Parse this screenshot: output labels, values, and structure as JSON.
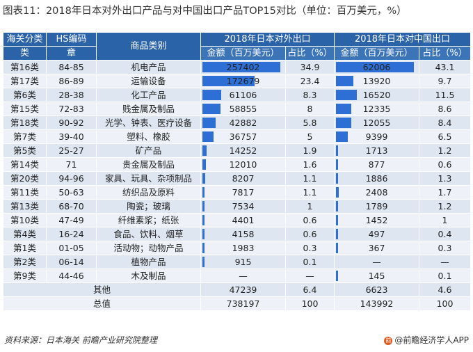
{
  "title": "图表11：2018年日本对外出口产品与对中国出口产品TOP15对比（单位：百万美元，%）",
  "headers": {
    "customs_class": "海关分类",
    "customs_class_sub": "类",
    "hs_code": "HS编码",
    "hs_code_sub": "章",
    "product_category": "商品类别",
    "group_world": "2018年日本对外出口",
    "group_china": "2018年日本对中国出口",
    "amount": "金额（百万美元）",
    "share": "占比（%）"
  },
  "rows": [
    {
      "cls": "第16类",
      "hs": "84-85",
      "product": "机电产品",
      "world_amount": "257402",
      "world_share": "34.9",
      "china_amount": "62006",
      "china_share": "43.1"
    },
    {
      "cls": "第17类",
      "hs": "86-89",
      "product": "运输设备",
      "world_amount": "172679",
      "world_share": "23.4",
      "china_amount": "13920",
      "china_share": "9.7"
    },
    {
      "cls": "第6类",
      "hs": "28-38",
      "product": "化工产品",
      "world_amount": "61106",
      "world_share": "8.3",
      "china_amount": "16520",
      "china_share": "11.5"
    },
    {
      "cls": "第15类",
      "hs": "72-83",
      "product": "贱金属及制品",
      "world_amount": "58855",
      "world_share": "8",
      "china_amount": "12335",
      "china_share": "8.6"
    },
    {
      "cls": "第18类",
      "hs": "90-92",
      "product": "光学、钟表、医疗设备",
      "world_amount": "42882",
      "world_share": "5.8",
      "china_amount": "12055",
      "china_share": "8.4"
    },
    {
      "cls": "第7类",
      "hs": "39-40",
      "product": "塑料、橡胶",
      "world_amount": "36757",
      "world_share": "5",
      "china_amount": "9399",
      "china_share": "6.5"
    },
    {
      "cls": "第5类",
      "hs": "25-27",
      "product": "矿产品",
      "world_amount": "14252",
      "world_share": "1.9",
      "china_amount": "1713",
      "china_share": "1.2"
    },
    {
      "cls": "第14类",
      "hs": "71",
      "product": "贵金属及制品",
      "world_amount": "12010",
      "world_share": "1.6",
      "china_amount": "877",
      "china_share": "0.6"
    },
    {
      "cls": "第20类",
      "hs": "94-96",
      "product": "家具、玩具、杂项制品",
      "world_amount": "8207",
      "world_share": "1.1",
      "china_amount": "1886",
      "china_share": "1.3"
    },
    {
      "cls": "第11类",
      "hs": "50-63",
      "product": "纺织品及原料",
      "world_amount": "7817",
      "world_share": "1.1",
      "china_amount": "2408",
      "china_share": "1.7"
    },
    {
      "cls": "第13类",
      "hs": "68-70",
      "product": "陶瓷；玻璃",
      "world_amount": "7534",
      "world_share": "1",
      "china_amount": "1789",
      "china_share": "1.2"
    },
    {
      "cls": "第10类",
      "hs": "47-49",
      "product": "纤维素浆；纸张",
      "world_amount": "4401",
      "world_share": "0.6",
      "china_amount": "1452",
      "china_share": "1"
    },
    {
      "cls": "第4类",
      "hs": "16-24",
      "product": "食品、饮料、烟草",
      "world_amount": "4158",
      "world_share": "0.6",
      "china_amount": "497",
      "china_share": "0.4"
    },
    {
      "cls": "第1类",
      "hs": "01-05",
      "product": "活动物；动物产品",
      "world_amount": "1983",
      "world_share": "0.3",
      "china_amount": "367",
      "china_share": "0.3"
    },
    {
      "cls": "第2类",
      "hs": "06-14",
      "product": "植物产品",
      "world_amount": "915",
      "world_share": "0.1",
      "china_amount": "—",
      "china_share": "—"
    },
    {
      "cls": "第9类",
      "hs": "44-46",
      "product": "木及制品",
      "world_amount": "—",
      "world_share": "—",
      "china_amount": "145",
      "china_share": "0.1"
    }
  ],
  "other": {
    "label": "其他",
    "world_amount": "47239",
    "world_share": "6.4",
    "china_amount": "6623",
    "china_share": "4.6"
  },
  "total": {
    "label": "总值",
    "world_amount": "738197",
    "world_share": "100",
    "china_amount": "143992",
    "china_share": "100"
  },
  "footer_source": "资料来源：日本海关  前瞻产业研究院整理",
  "brand": "@前瞻经济学人APP",
  "bar_color": "#2e6fd6",
  "header_color": "#2b63a8"
}
